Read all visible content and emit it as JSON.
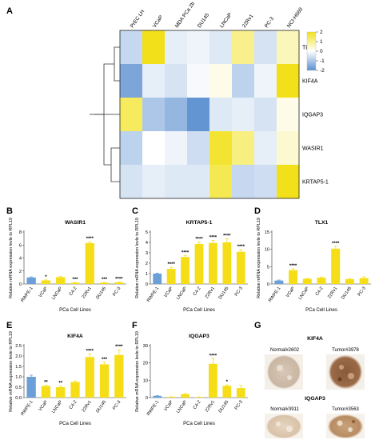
{
  "panels": {
    "A": "A",
    "B": "B",
    "C": "C",
    "D": "D",
    "E": "E",
    "F": "F",
    "G": "G"
  },
  "heatmap": {
    "columns": [
      "PrEC LH",
      "VCaP",
      "MDA PCa 2b",
      "DU145",
      "LNCaP",
      "22Rv1",
      "PC-3",
      "NCI-H660"
    ],
    "rows": [
      "TLX1",
      "KIF4A",
      "IQGAP3",
      "WASIR1",
      "KRTAP5-1"
    ],
    "values": [
      [
        -0.7,
        2.0,
        -0.3,
        -0.2,
        -0.4,
        1.0,
        -0.5,
        0.6
      ],
      [
        -1.6,
        -0.3,
        -0.5,
        -0.1,
        0.2,
        -0.8,
        -0.2,
        2.0
      ],
      [
        1.4,
        -1.0,
        -1.3,
        -1.9,
        -0.4,
        -0.3,
        -0.5,
        0.2
      ],
      [
        -0.8,
        0.0,
        -0.2,
        -0.6,
        1.8,
        1.1,
        -0.3,
        0.4
      ],
      [
        -0.5,
        -0.3,
        -0.4,
        -0.4,
        1.5,
        -0.7,
        -0.6,
        2.0
      ]
    ],
    "colorbar": {
      "ticks": [
        "2",
        "1",
        "0",
        "-1",
        "-2"
      ],
      "low": "#5b8fd0",
      "mid": "#ffffff",
      "high": "#f2e11a"
    }
  },
  "chart_data": [
    {
      "panel": "B",
      "type": "bar",
      "title": "WASIR1",
      "ylabel": "Relative mRNA expression levle to RPL19",
      "xlabel": "PCa Cell Lines",
      "categories": [
        "RWPE-1",
        "VCaP",
        "LNCaP",
        "C4-2",
        "22Rv1",
        "DU145",
        "PC-3"
      ],
      "values": [
        1.0,
        0.55,
        1.05,
        0.2,
        6.3,
        0.2,
        0.25
      ],
      "errors": [
        0.1,
        0.08,
        0.1,
        0.03,
        0.2,
        0.03,
        0.04
      ],
      "stars": [
        "",
        "*",
        "",
        "***",
        "****",
        "***",
        "****"
      ],
      "yticks": [
        0,
        2,
        4,
        6,
        8
      ],
      "ylim": [
        0,
        8
      ]
    },
    {
      "panel": "C",
      "type": "bar",
      "title": "KRTAP5-1",
      "ylabel": "Relative mRNA expression levle to RPL19",
      "xlabel": "PCa Cell Lines",
      "categories": [
        "RWPE-1",
        "VCaP",
        "LNCaP",
        "C4-2",
        "22Rv1",
        "DU145",
        "PC-3"
      ],
      "values": [
        1.0,
        1.45,
        2.6,
        3.85,
        3.95,
        4.0,
        3.1
      ],
      "errors": [
        0.05,
        0.15,
        0.15,
        0.2,
        0.25,
        0.35,
        0.2
      ],
      "stars": [
        "",
        "****",
        "****",
        "****",
        "****",
        "****",
        "****"
      ],
      "yticks": [
        0,
        1,
        2,
        3,
        4,
        5
      ],
      "ylim": [
        0,
        5
      ]
    },
    {
      "panel": "D",
      "type": "bar",
      "title": "TLX1",
      "ylabel": "Relative mRNA expression levle to RPL19",
      "xlabel": "PCa Cell Lines",
      "categories": [
        "RWPE-1",
        "VCaP",
        "LNCaP",
        "C4-2",
        "22Rv1",
        "DU145",
        "PC-3"
      ],
      "values": [
        1.0,
        4.0,
        1.5,
        1.8,
        10.2,
        1.4,
        1.7
      ],
      "errors": [
        0.15,
        0.4,
        0.1,
        0.2,
        0.7,
        0.15,
        0.4
      ],
      "stars": [
        "",
        "****",
        "",
        "",
        "****",
        "",
        ""
      ],
      "yticks": [
        0,
        5,
        10,
        15
      ],
      "ylim": [
        0,
        15
      ]
    },
    {
      "panel": "E",
      "type": "bar",
      "title": "KIF4A",
      "ylabel": "Relative mRNA expression levle to RPL19",
      "xlabel": "PCa Cell Lines",
      "categories": [
        "RWPE-1",
        "VCaP",
        "LNCaP",
        "C4-2",
        "22Rv1",
        "DU145",
        "PC-3"
      ],
      "values": [
        1.0,
        0.56,
        0.5,
        0.75,
        1.95,
        1.6,
        2.05
      ],
      "errors": [
        0.08,
        0.03,
        0.05,
        0.05,
        0.15,
        0.1,
        0.25
      ],
      "stars": [
        "",
        "**",
        "**",
        "",
        "****",
        "***",
        "****"
      ],
      "yticks": [
        0.0,
        0.5,
        1.0,
        1.5,
        2.0,
        2.5
      ],
      "ylim": [
        0,
        2.5
      ]
    },
    {
      "panel": "F",
      "type": "bar",
      "title": "IQGAP3",
      "ylabel": "Relative mRNA expression levle to RPL19",
      "xlabel": "PCa Cell Lines",
      "categories": [
        "RWPE-1",
        "VCaP",
        "LNCaP",
        "C4-2",
        "22Rv1",
        "DU145",
        "PC-3"
      ],
      "values": [
        1.0,
        0.4,
        2.0,
        0.3,
        19.5,
        6.8,
        5.5
      ],
      "errors": [
        0.2,
        0.1,
        0.3,
        0.1,
        3.0,
        0.5,
        1.5
      ],
      "stars": [
        "",
        "",
        "",
        "",
        "****",
        "*",
        ""
      ],
      "yticks": [
        0,
        10,
        20,
        30
      ],
      "ylim": [
        0,
        30
      ]
    }
  ],
  "panelG": {
    "kif4a_title": "KIF4A",
    "kif4a_normal": "Normal#2602",
    "kif4a_tumor": "Tumor#3978",
    "iqgap3_title": "IQGAP3",
    "iqgap3_normal": "Normal#3911",
    "iqgap3_tumor": "Tumor#3563"
  },
  "colors": {
    "control": "#6b9fd8",
    "sample": "#f5de18",
    "grid": "#444444"
  }
}
